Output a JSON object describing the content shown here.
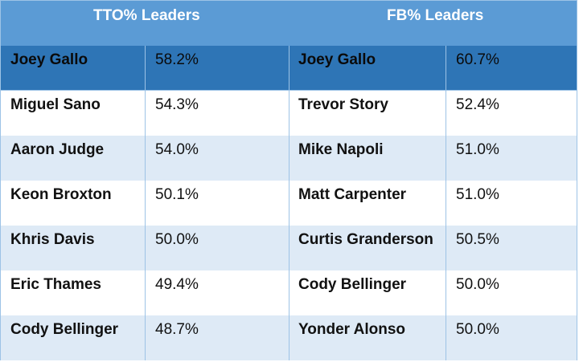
{
  "headers": {
    "tto": "TTO% Leaders",
    "fb": "FB% Leaders"
  },
  "rows": [
    {
      "tto_name": "Joey Gallo",
      "tto_pct": "58.2%",
      "fb_name": "Joey Gallo",
      "fb_pct": "60.7%"
    },
    {
      "tto_name": "Miguel Sano",
      "tto_pct": "54.3%",
      "fb_name": "Trevor Story",
      "fb_pct": "52.4%"
    },
    {
      "tto_name": "Aaron Judge",
      "tto_pct": "54.0%",
      "fb_name": "Mike Napoli",
      "fb_pct": "51.0%"
    },
    {
      "tto_name": "Keon Broxton",
      "tto_pct": "50.1%",
      "fb_name": "Matt Carpenter",
      "fb_pct": "51.0%"
    },
    {
      "tto_name": "Khris Davis",
      "tto_pct": "50.0%",
      "fb_name": "Curtis Granderson",
      "fb_pct": "50.5%"
    },
    {
      "tto_name": "Eric Thames",
      "tto_pct": "49.4%",
      "fb_name": "Cody Bellinger",
      "fb_pct": "50.0%"
    },
    {
      "tto_name": "Cody Bellinger",
      "tto_pct": "48.7%",
      "fb_name": "Yonder Alonso",
      "fb_pct": "50.0%"
    }
  ],
  "colors": {
    "header_bg": "#5b9bd5",
    "leader_row_bg": "#2e75b6",
    "band_bg": "#deeaf6",
    "border": "#9dc3e6"
  }
}
